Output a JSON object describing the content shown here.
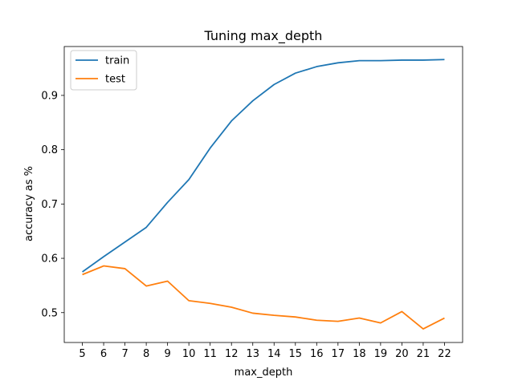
{
  "chart_data": {
    "type": "line",
    "title": "Tuning max_depth",
    "xlabel": "max_depth",
    "ylabel": "accuracy as %",
    "x": [
      5,
      6,
      7,
      8,
      9,
      10,
      11,
      12,
      13,
      14,
      15,
      16,
      17,
      18,
      19,
      20,
      21,
      22
    ],
    "xticks": [
      "5",
      "6",
      "7",
      "8",
      "9",
      "10",
      "11",
      "12",
      "13",
      "14",
      "15",
      "16",
      "17",
      "18",
      "19",
      "20",
      "21",
      "22"
    ],
    "yticks": [
      "0.5",
      "0.6",
      "0.7",
      "0.8",
      "0.9"
    ],
    "ylim": [
      0.445,
      0.99
    ],
    "xlim": [
      4.15,
      22.85
    ],
    "grid": false,
    "legend_position": "top-left",
    "series": [
      {
        "name": "train",
        "color": "#1f77b4",
        "values": [
          0.575,
          0.603,
          0.63,
          0.657,
          0.703,
          0.745,
          0.803,
          0.853,
          0.89,
          0.92,
          0.941,
          0.953,
          0.96,
          0.964,
          0.964,
          0.965,
          0.965,
          0.966
        ]
      },
      {
        "name": "test",
        "color": "#ff7f0e",
        "values": [
          0.57,
          0.586,
          0.581,
          0.549,
          0.558,
          0.522,
          0.517,
          0.51,
          0.499,
          0.495,
          0.492,
          0.486,
          0.484,
          0.49,
          0.481,
          0.502,
          0.47,
          0.49
        ]
      }
    ]
  }
}
